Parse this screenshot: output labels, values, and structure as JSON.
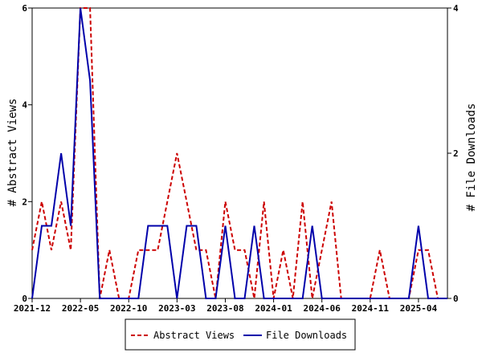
{
  "chart_data": {
    "type": "line",
    "x_tick_labels": [
      "2021-12",
      "2022-05",
      "2022-10",
      "2023-03",
      "2023-08",
      "2024-01",
      "2024-06",
      "2024-11",
      "2025-04"
    ],
    "x_tick_index": [
      0,
      5,
      10,
      15,
      20,
      25,
      30,
      35,
      40
    ],
    "x_range": [
      0,
      43
    ],
    "ylabel_left": "# Abstract Views",
    "ylabel_right": "# File Downloads",
    "ylim_left": [
      0,
      6
    ],
    "ylim_right": [
      0,
      4
    ],
    "yticks_left": [
      0,
      2,
      4,
      6
    ],
    "yticks_right": [
      0,
      2,
      4
    ],
    "grid": false,
    "legend_position": "bottom",
    "series": [
      {
        "name": "Abstract Views",
        "axis": "left",
        "color": "#cc0000",
        "dash": "dashed",
        "values": [
          1,
          2,
          1,
          2,
          1,
          6,
          6,
          0,
          1,
          0,
          0,
          1,
          1,
          1,
          2,
          3,
          2,
          1,
          1,
          0,
          2,
          1,
          1,
          0,
          2,
          0,
          1,
          0,
          2,
          0,
          1,
          2,
          0,
          0,
          0,
          0,
          1,
          0,
          0,
          0,
          1,
          1,
          0,
          0
        ]
      },
      {
        "name": "File Downloads",
        "axis": "right",
        "color": "#0000aa",
        "dash": "solid",
        "values": [
          0,
          1,
          1,
          2,
          1,
          4,
          3,
          0,
          0,
          0,
          0,
          0,
          1,
          1,
          1,
          0,
          1,
          1,
          0,
          0,
          1,
          0,
          0,
          1,
          0,
          0,
          0,
          0,
          0,
          1,
          0,
          0,
          0,
          0,
          0,
          0,
          0,
          0,
          0,
          0,
          1,
          0,
          0,
          0
        ]
      }
    ]
  }
}
